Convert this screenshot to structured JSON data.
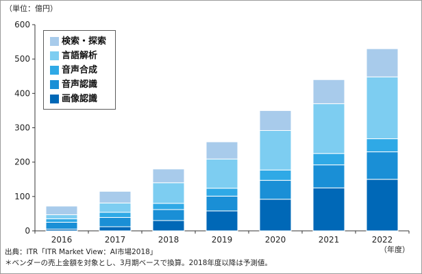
{
  "unit_label": "（単位：億円）",
  "chart_data": {
    "type": "bar",
    "stacked": true,
    "title": "",
    "xlabel": "（年度）",
    "ylabel": "（単位：億円）",
    "ylim": [
      0,
      600
    ],
    "yticks": [
      0,
      100,
      200,
      300,
      400,
      500,
      600
    ],
    "categories": [
      "2016",
      "2017",
      "2018",
      "2019",
      "2020",
      "2021",
      "2022"
    ],
    "series": [
      {
        "name": "画像認識",
        "color": "#0068b7",
        "values": [
          5,
          12,
          30,
          58,
          92,
          125,
          150
        ]
      },
      {
        "name": "音声認識",
        "color": "#1a8fd6",
        "values": [
          20,
          27,
          32,
          43,
          55,
          67,
          80
        ]
      },
      {
        "name": "音声合成",
        "color": "#2fa9e6",
        "values": [
          10,
          15,
          18,
          23,
          30,
          33,
          38
        ]
      },
      {
        "name": "言語解析",
        "color": "#7dcdf1",
        "values": [
          12,
          27,
          60,
          85,
          115,
          145,
          180
        ]
      },
      {
        "name": "検索・探索",
        "color": "#a8cbeb",
        "values": [
          25,
          34,
          40,
          50,
          58,
          70,
          82
        ]
      }
    ],
    "totals": [
      72,
      115,
      180,
      259,
      350,
      440,
      530
    ],
    "legend_position": "top-left",
    "grid": false
  },
  "footnotes": {
    "source": "出典：ITR「ITR Market View：AI市場2018」",
    "note": "＊ベンダーの売上金額を対象とし、3月期ベースで換算。2018年度以降は予測値。"
  }
}
